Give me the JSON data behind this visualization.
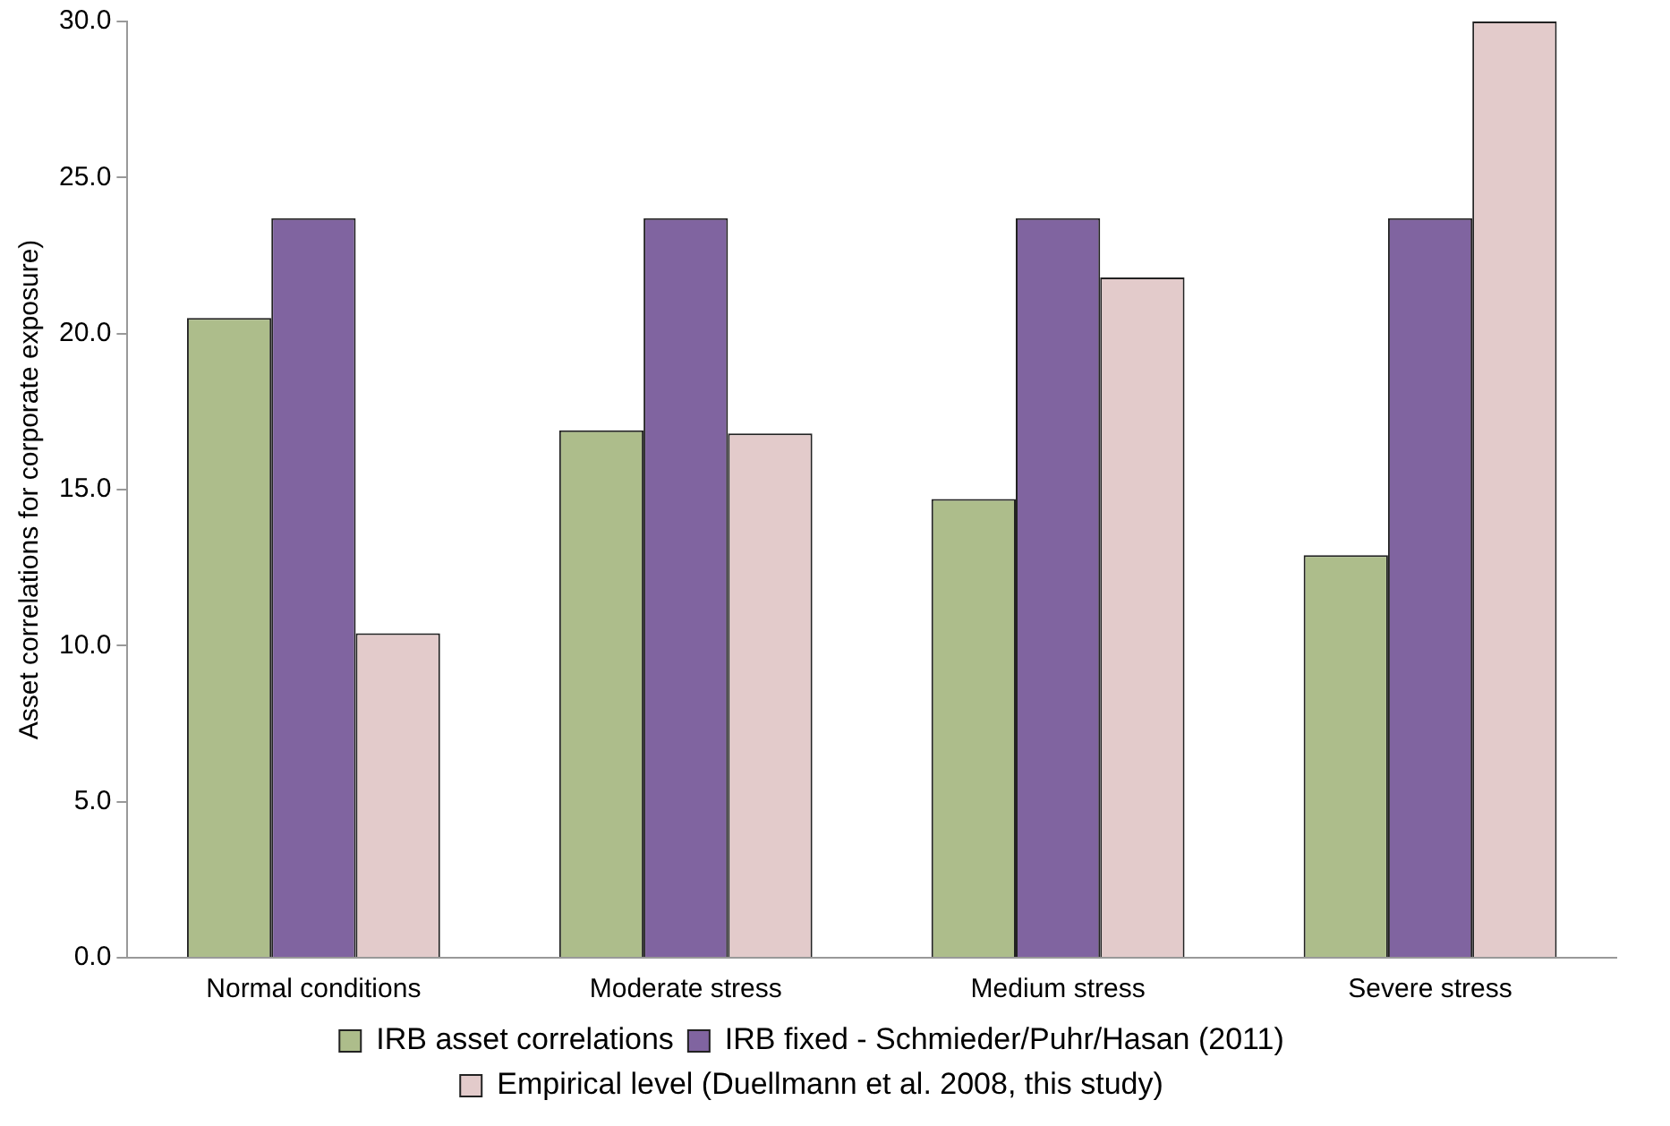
{
  "chart_data": {
    "type": "bar",
    "ylabel": "Asset correlations for corporate exposure)",
    "categories": [
      "Normal conditions",
      "Moderate stress",
      "Medium stress",
      "Severe stress"
    ],
    "series": [
      {
        "name": "IRB asset correlations",
        "color": "#adbd8b",
        "values": [
          20.5,
          16.9,
          14.7,
          12.9
        ]
      },
      {
        "name": "IRB fixed - Schmieder/Puhr/Hasan (2011)",
        "color": "#8064a0",
        "values": [
          23.7,
          23.7,
          23.7,
          23.7
        ]
      },
      {
        "name": "Empirical level (Duellmann et al. 2008, this study)",
        "color": "#e3cbcb",
        "values": [
          10.4,
          16.8,
          21.8,
          30.0
        ]
      }
    ],
    "ylim": [
      0,
      30
    ],
    "yticks": [
      {
        "value": 0,
        "label": "0.0"
      },
      {
        "value": 5,
        "label": "5.0"
      },
      {
        "value": 10,
        "label": "10.0"
      },
      {
        "value": 15,
        "label": "15.0"
      },
      {
        "value": 20,
        "label": "20.0"
      },
      {
        "value": 25,
        "label": "25.0"
      },
      {
        "value": 30,
        "label": "30.0"
      }
    ],
    "grid": false,
    "legend": "bottom"
  }
}
